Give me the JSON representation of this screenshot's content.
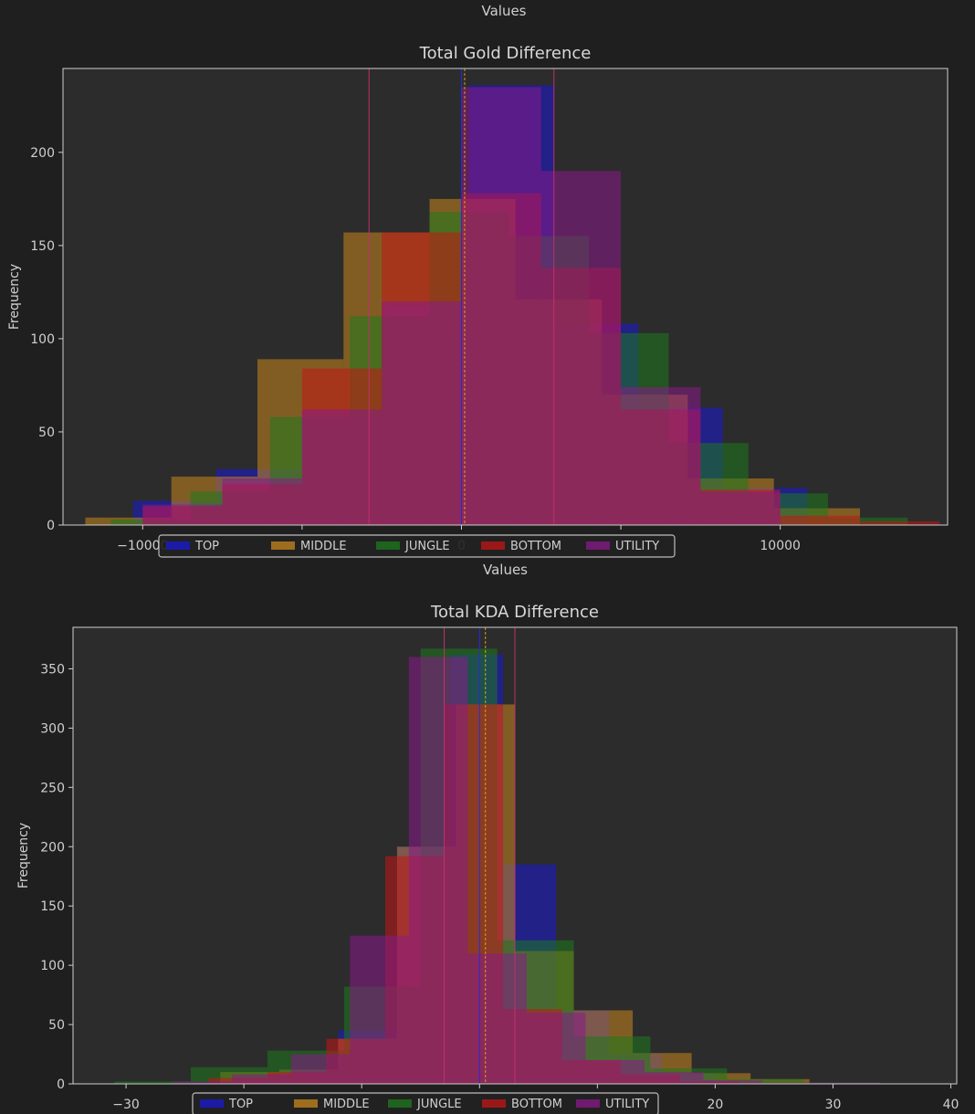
{
  "page": {
    "top_axis_label": "Values"
  },
  "chart_data": [
    {
      "type": "histogram",
      "title": "Total Gold Difference",
      "xlabel": "Values",
      "ylabel": "Frequency",
      "xlim": [
        -12500,
        15250
      ],
      "ylim": [
        0,
        245
      ],
      "xticks": [
        -10000,
        -5000,
        0,
        5000,
        10000
      ],
      "xtick_labels": [
        "−10000",
        "",
        "0",
        "",
        "10000"
      ],
      "yticks": [
        0,
        50,
        100,
        150,
        200
      ],
      "legend": {
        "placement": "lower-center",
        "entries": [
          "TOP",
          "MIDDLE",
          "JUNGLE",
          "BOTTOM",
          "UTILITY"
        ]
      },
      "colors": {
        "TOP": "#1a1ad6",
        "MIDDLE": "#c8871e",
        "JUNGLE": "#1e7a1e",
        "BOTTOM": "#c41616",
        "UTILITY": "#8a1a8a"
      },
      "reference_lines": [
        -2900,
        0,
        100,
        2900
      ],
      "series": [
        {
          "name": "TOP",
          "edges": [
            -10300,
            -7700,
            -5050,
            -2400,
            250,
            2900,
            5550,
            8200,
            10850
          ],
          "counts": [
            13,
            30,
            58,
            118,
            236,
            108,
            63,
            20,
            2
          ]
        },
        {
          "name": "MIDDLE",
          "edges": [
            -11800,
            -9100,
            -6400,
            -3700,
            -1000,
            1700,
            4400,
            7100,
            9800,
            12500
          ],
          "counts": [
            4,
            26,
            89,
            157,
            175,
            121,
            70,
            25,
            9,
            2
          ]
        },
        {
          "name": "JUNGLE",
          "edges": [
            -11000,
            -8500,
            -6000,
            -3500,
            -1000,
            1500,
            4000,
            6500,
            9000,
            11500,
            14000
          ],
          "counts": [
            3,
            18,
            58,
            112,
            168,
            155,
            103,
            44,
            17,
            4,
            1
          ]
        },
        {
          "name": "BOTTOM",
          "edges": [
            -10000,
            -7500,
            -5000,
            -2500,
            0,
            2500,
            5000,
            7500,
            10000,
            12500,
            15000
          ],
          "counts": [
            10,
            22,
            84,
            157,
            178,
            138,
            62,
            19,
            5,
            2,
            1
          ]
        },
        {
          "name": "UTILITY",
          "edges": [
            -10000,
            -7500,
            -5000,
            -2500,
            0,
            2500,
            5000,
            7500,
            10000
          ],
          "counts": [
            11,
            25,
            62,
            120,
            235,
            190,
            74,
            18,
            1
          ]
        }
      ]
    },
    {
      "type": "histogram",
      "title": "Total KDA Difference",
      "xlabel": "",
      "ylabel": "Frequency",
      "xlim": [
        -34.5,
        40.5
      ],
      "ylim": [
        0,
        385
      ],
      "xticks": [
        -30,
        -20,
        -10,
        0,
        10,
        20,
        30,
        40
      ],
      "xtick_labels": [
        "−30",
        "",
        "",
        "",
        "",
        "20",
        "30",
        "40"
      ],
      "yticks": [
        0,
        50,
        100,
        150,
        200,
        250,
        300,
        350
      ],
      "legend": {
        "placement": "lower-center",
        "entries": [
          "TOP",
          "MIDDLE",
          "JUNGLE",
          "BOTTOM",
          "UTILITY"
        ]
      },
      "colors": {
        "TOP": "#1a1ad6",
        "MIDDLE": "#c8871e",
        "JUNGLE": "#1e7a1e",
        "BOTTOM": "#c41616",
        "UTILITY": "#8a1a8a"
      },
      "reference_lines": [
        -3,
        0,
        0.5,
        3
      ],
      "series": [
        {
          "name": "TOP",
          "edges": [
            -22,
            -17,
            -12,
            -7,
            -2.5,
            2,
            6.5,
            11,
            15.5,
            20
          ],
          "counts": [
            3,
            10,
            45,
            200,
            362,
            185,
            62,
            25,
            8
          ]
        },
        {
          "name": "MIDDLE",
          "edges": [
            -22,
            -17,
            -12,
            -7,
            -2,
            3,
            8,
            13,
            18,
            23,
            28
          ],
          "counts": [
            10,
            12,
            38,
            200,
            320,
            112,
            62,
            26,
            9,
            4
          ]
        },
        {
          "name": "JUNGLE",
          "edges": [
            -31,
            -24.5,
            -18,
            -11.5,
            -5,
            1.5,
            8,
            14.5,
            21,
            27.5,
            34
          ],
          "counts": [
            2,
            14,
            28,
            82,
            367,
            121,
            40,
            13,
            4,
            1
          ]
        },
        {
          "name": "BOTTOM",
          "edges": [
            -23,
            -18,
            -13,
            -8,
            -3,
            2,
            7,
            12,
            17,
            22
          ],
          "counts": [
            5,
            10,
            38,
            192,
            320,
            63,
            20,
            8,
            2
          ]
        },
        {
          "name": "UTILITY",
          "edges": [
            -26,
            -21,
            -16,
            -11,
            -6,
            -1,
            4,
            9,
            14,
            19,
            24,
            29,
            34
          ],
          "counts": [
            2,
            8,
            25,
            125,
            360,
            110,
            60,
            20,
            10,
            3,
            1,
            1
          ]
        }
      ]
    }
  ]
}
